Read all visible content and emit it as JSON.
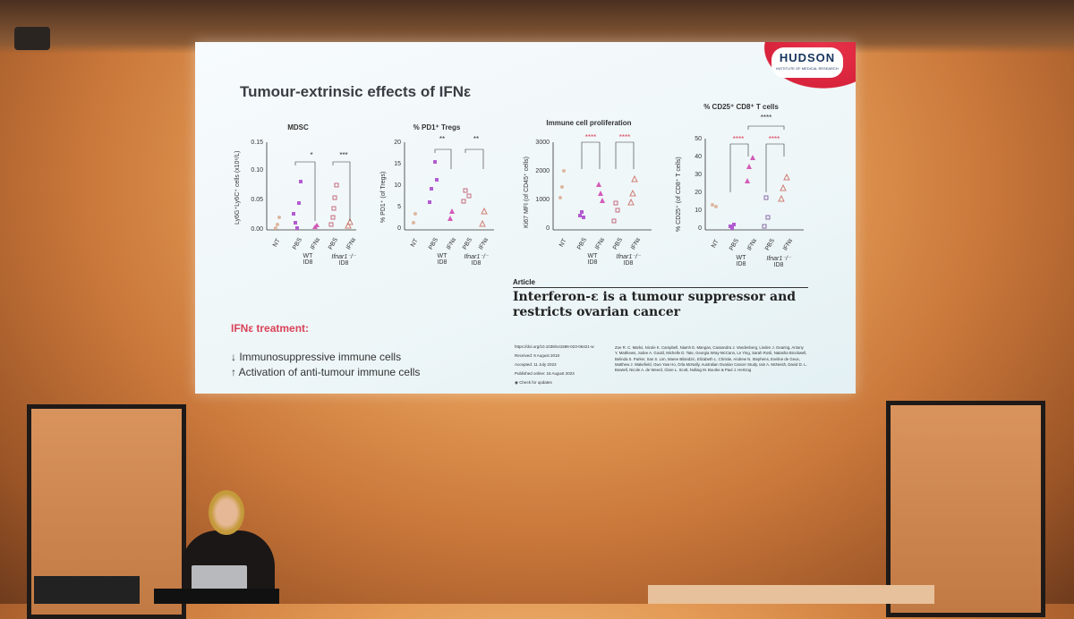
{
  "slide": {
    "title": "Tumour-extrinsic effects of IFNε",
    "logo": {
      "name": "HUDSON",
      "subtitle": "INSTITUTE OF MEDICAL RESEARCH"
    },
    "panels": [
      {
        "title": "MDSC",
        "ylabel": "Ly6G⁺Ly6C⁺ cells (x10⁶/L)",
        "yticks": [
          "0.15",
          "0.10",
          "0.05",
          "0.00"
        ],
        "xlabels": [
          "NT",
          "PBS",
          "IFNε",
          "PBS",
          "IFNε"
        ],
        "sig": [
          "*",
          "***"
        ],
        "groups": [
          {
            "label": "WT",
            "sub": "ID8"
          },
          {
            "label": "Ifnar1⁻/⁻",
            "sub": "ID8"
          }
        ]
      },
      {
        "title": "% PD1⁺ Tregs",
        "ylabel": "% PD1⁺ (of Tregs)",
        "yticks": [
          "20",
          "15",
          "10",
          "5",
          "0"
        ],
        "xlabels": [
          "NT",
          "PBS",
          "IFNε",
          "PBS",
          "IFNε"
        ],
        "sig": [
          "**",
          "**"
        ],
        "groups": [
          {
            "label": "WT",
            "sub": "ID8"
          },
          {
            "label": "Ifnar1⁻/⁻",
            "sub": "ID8"
          }
        ]
      },
      {
        "title": "Immune cell proliferation",
        "ylabel": "Ki67 MFI (of CD45⁺ cells)",
        "yticks": [
          "3000",
          "2000",
          "1000",
          "0"
        ],
        "xlabels": [
          "NT",
          "PBS",
          "IFNε",
          "PBS",
          "IFNε"
        ],
        "sig": [
          "****",
          "****"
        ],
        "groups": [
          {
            "label": "WT",
            "sub": "ID8"
          },
          {
            "label": "Ifnar1⁻/⁻",
            "sub": "ID8"
          }
        ]
      },
      {
        "title": "% CD25⁺ CD8⁺ T cells",
        "ylabel": "% CD25⁺ (of CD8⁺ T cells)",
        "yticks": [
          "50",
          "40",
          "30",
          "20",
          "10",
          "0"
        ],
        "xlabels": [
          "NT",
          "PBS",
          "IFNε",
          "PBS",
          "IFNε"
        ],
        "sig": [
          "****",
          "****",
          "****"
        ],
        "groups": [
          {
            "label": "WT",
            "sub": "ID8"
          },
          {
            "label": "Ifnar1⁻/⁻",
            "sub": "ID8"
          }
        ]
      }
    ],
    "treatment": {
      "heading": "IFNε treatment:",
      "line1": "↓  Immunosuppressive immune cells",
      "line2": "↑  Activation of anti-tumour immune cells"
    },
    "article": {
      "tag": "Article",
      "title": "Interferon-ε is a tumour suppressor and restricts ovarian cancer",
      "doi": "https://doi.org/10.1038/s41586-023-06421-w",
      "received": "Received: 9 August 2018",
      "accepted": "Accepted: 11 July 2023",
      "published": "Published online: 16 August 2023",
      "check": "Check for updates",
      "authors": "Zoe R. C. Marks, Nicole K. Campbell, Niamh E. Mangan, Cassandra J. Vandenberg, Linden J. Gearing, Antony Y. Matthews, Jodee A. Gould, Michelle D. Tate, Georgia Wray-McCann, Le Ying, Sarah Rosli, Natasha Brockwell, Belinda S. Parker, San S. Lim, Maree Bilandzic, Elizabeth L. Christie, Andrew N. Stephens, Eveline de Geus, Matthew J. Wakefield, Gwo Yaw Ho, Orla McNally, Australian Ovarian Cancer Study, Iain A. McNeish, David D. L. Bowtell, Nicole A. de Weerd, Clare L. Scott, Nollaig M. Bourke & Paul J. Hertzog"
    }
  }
}
